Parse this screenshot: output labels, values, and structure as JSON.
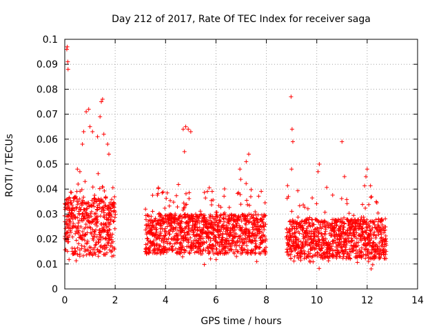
{
  "chart_data": {
    "type": "scatter",
    "title": "Day 212 of 2017, Rate Of TEC Index for receiver saga",
    "xlabel": "GPS time / hours",
    "ylabel": "ROTI / TECUs",
    "xlim": [
      0,
      14
    ],
    "ylim": [
      0,
      0.1
    ],
    "xticks": [
      0,
      2,
      4,
      6,
      8,
      10,
      12,
      14
    ],
    "xtick_labels": [
      "0",
      "2",
      "4",
      "6",
      "8",
      "10",
      "12",
      "14"
    ],
    "yticks": [
      0,
      0.01,
      0.02,
      0.03,
      0.04,
      0.05,
      0.06,
      0.07,
      0.08,
      0.09,
      0.1
    ],
    "ytick_labels": [
      "0",
      "0.01",
      "0.02",
      "0.03",
      "0.04",
      "0.05",
      "0.06",
      "0.07",
      "0.08",
      "0.09",
      "0.1"
    ],
    "grid": true,
    "marker": "+",
    "marker_color": "#ff0000",
    "series": [
      {
        "name": "ROTI",
        "segments": [
          {
            "start": 0.0,
            "end": 2.0,
            "base": 0.025,
            "spread": 0.012,
            "step": 0.0125
          },
          {
            "start": 3.2,
            "end": 8.0,
            "base": 0.022,
            "spread": 0.008,
            "step": 0.0125
          },
          {
            "start": 8.8,
            "end": 12.75,
            "base": 0.02,
            "spread": 0.008,
            "step": 0.0125
          }
        ],
        "peaks": [
          [
            0.08,
            0.096
          ],
          [
            0.1,
            0.097
          ],
          [
            0.12,
            0.091
          ],
          [
            0.13,
            0.088
          ],
          [
            0.85,
            0.071
          ],
          [
            0.95,
            0.072
          ],
          [
            1.0,
            0.065
          ],
          [
            1.4,
            0.069
          ],
          [
            1.45,
            0.075
          ],
          [
            1.5,
            0.076
          ],
          [
            1.1,
            0.063
          ],
          [
            1.3,
            0.061
          ],
          [
            0.75,
            0.063
          ],
          [
            0.7,
            0.058
          ],
          [
            1.55,
            0.062
          ],
          [
            1.7,
            0.058
          ],
          [
            1.75,
            0.054
          ],
          [
            0.5,
            0.048
          ],
          [
            0.6,
            0.047
          ],
          [
            4.7,
            0.064
          ],
          [
            4.8,
            0.065
          ],
          [
            4.9,
            0.064
          ],
          [
            5.0,
            0.063
          ],
          [
            4.75,
            0.055
          ],
          [
            7.3,
            0.054
          ],
          [
            7.2,
            0.051
          ],
          [
            6.95,
            0.048
          ],
          [
            8.98,
            0.077
          ],
          [
            9.02,
            0.064
          ],
          [
            9.05,
            0.059
          ],
          [
            9.0,
            0.048
          ],
          [
            10.1,
            0.05
          ],
          [
            10.05,
            0.047
          ],
          [
            11.0,
            0.059
          ],
          [
            12.0,
            0.048
          ],
          [
            11.95,
            0.045
          ],
          [
            11.1,
            0.045
          ]
        ]
      }
    ]
  }
}
